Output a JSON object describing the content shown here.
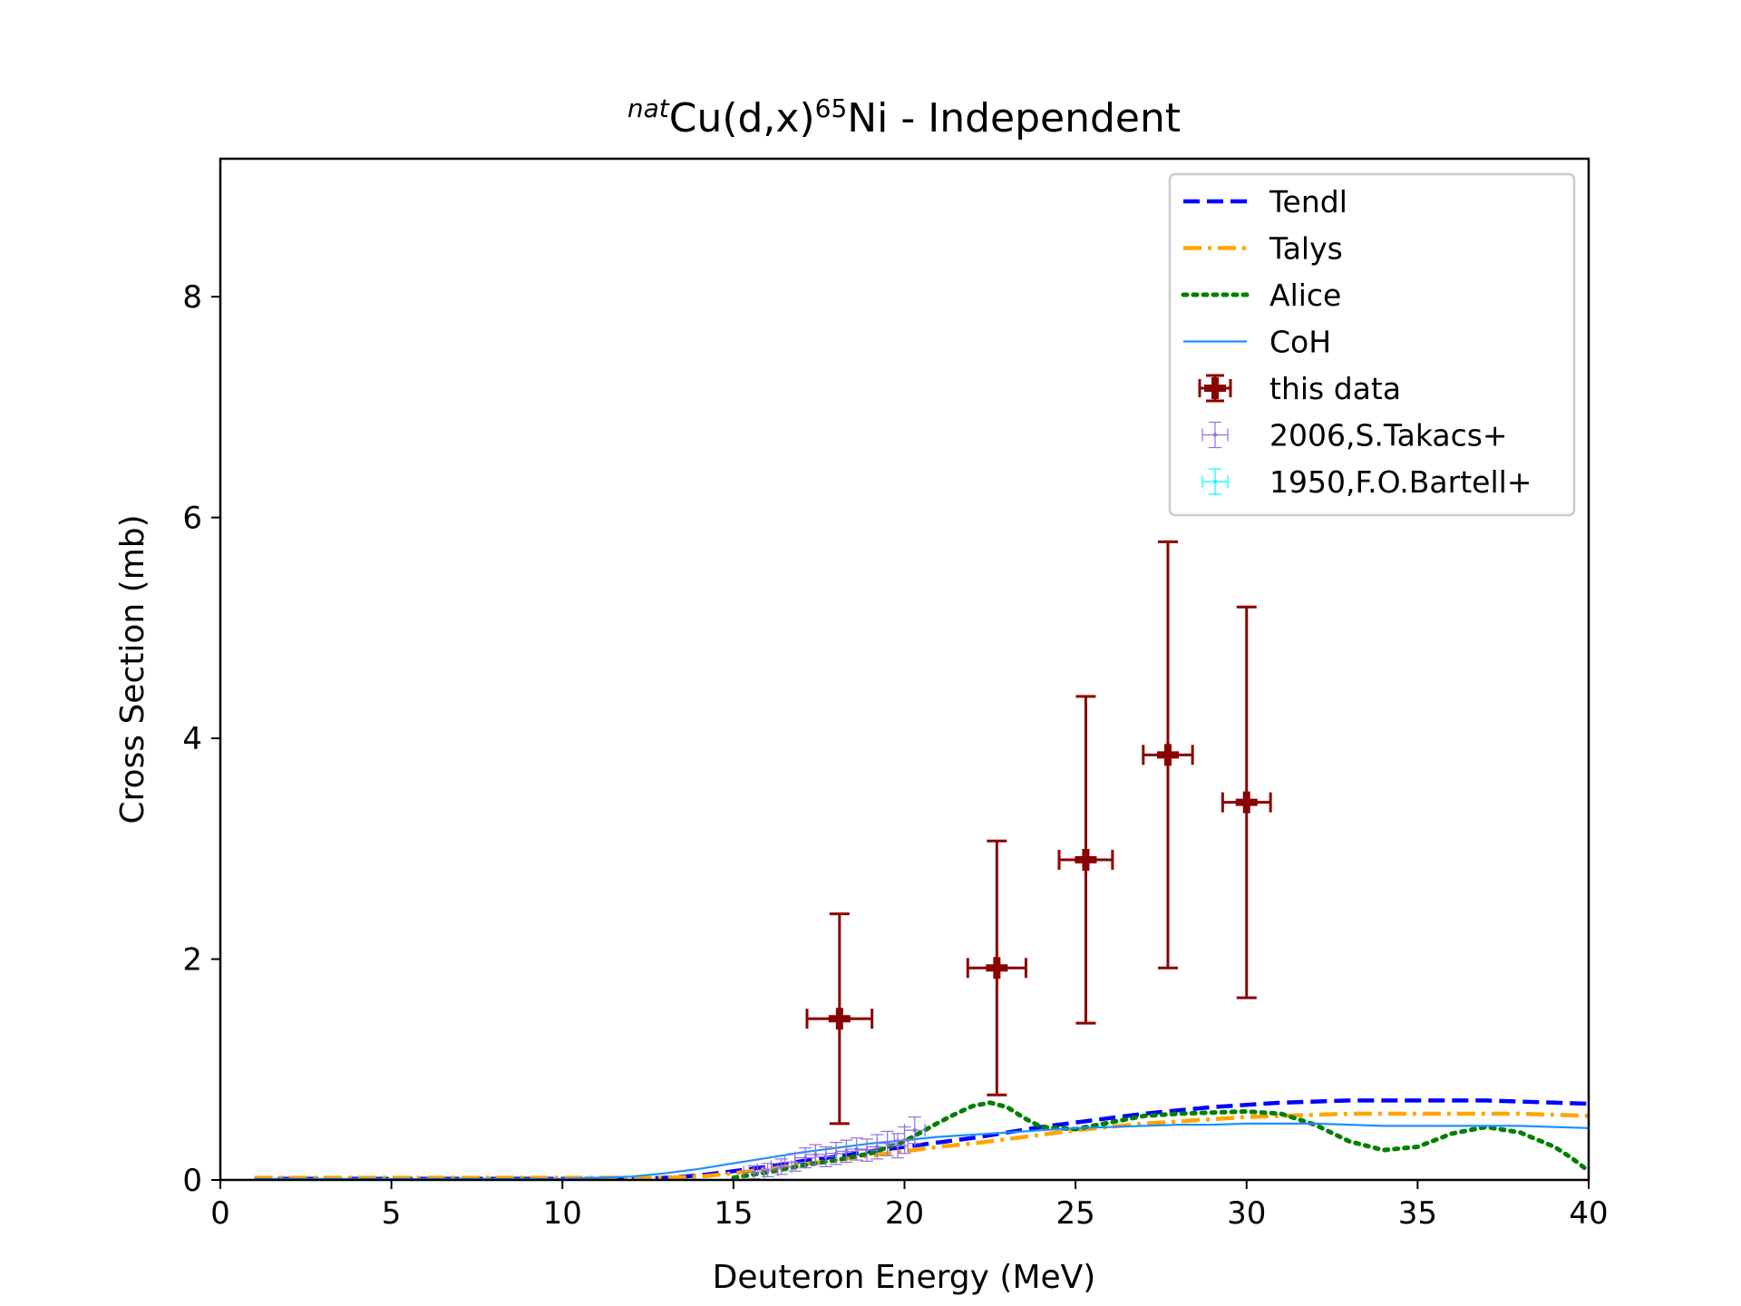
{
  "chart_data": {
    "type": "scatter",
    "title": {
      "prefix_sup": "nat",
      "element": "Cu(d,x)",
      "product_sup": "65",
      "product": "Ni - Independent"
    },
    "xlabel": "Deuteron Energy (MeV)",
    "ylabel": "Cross Section (mb)",
    "xlim": [
      0,
      40
    ],
    "ylim": [
      0,
      9.25
    ],
    "xticks": [
      0,
      5,
      10,
      15,
      20,
      25,
      30,
      35,
      40
    ],
    "xtick_labels": [
      "0",
      "5",
      "10",
      "15",
      "20",
      "25",
      "30",
      "35",
      "40"
    ],
    "yticks": [
      0,
      2,
      4,
      6,
      8
    ],
    "ytick_labels": [
      "0",
      "2",
      "4",
      "6",
      "8"
    ],
    "grid": false,
    "legend_position": "top-right",
    "series": [
      {
        "name": "Tendl",
        "kind": "line",
        "style": "dashed",
        "color": "#0000ff",
        "x": [
          1,
          5,
          10,
          12,
          13,
          14,
          15,
          16,
          17,
          18,
          19,
          20,
          21,
          22,
          23,
          24,
          25,
          26,
          27,
          28,
          29,
          30,
          31,
          32,
          33,
          34,
          35,
          36,
          37,
          38,
          39,
          40
        ],
        "y": [
          0.01,
          0.01,
          0.01,
          0.01,
          0.02,
          0.04,
          0.08,
          0.12,
          0.17,
          0.21,
          0.26,
          0.3,
          0.34,
          0.38,
          0.43,
          0.48,
          0.52,
          0.56,
          0.6,
          0.63,
          0.66,
          0.68,
          0.7,
          0.71,
          0.72,
          0.72,
          0.72,
          0.72,
          0.72,
          0.71,
          0.7,
          0.69
        ]
      },
      {
        "name": "Talys",
        "kind": "line",
        "style": "dashdot",
        "color": "#ffa500",
        "x": [
          1,
          5,
          10,
          12,
          13,
          14,
          15,
          16,
          17,
          18,
          19,
          20,
          21,
          22,
          23,
          24,
          25,
          26,
          27,
          28,
          29,
          30,
          31,
          32,
          33,
          34,
          35,
          36,
          37,
          38,
          39,
          40
        ],
        "y": [
          0.02,
          0.02,
          0.02,
          0.02,
          0.02,
          0.03,
          0.06,
          0.1,
          0.14,
          0.18,
          0.22,
          0.26,
          0.3,
          0.33,
          0.37,
          0.41,
          0.45,
          0.48,
          0.51,
          0.53,
          0.55,
          0.57,
          0.58,
          0.59,
          0.6,
          0.6,
          0.6,
          0.6,
          0.6,
          0.6,
          0.59,
          0.58
        ]
      },
      {
        "name": "Alice",
        "kind": "line",
        "style": "dotted",
        "color": "#008000",
        "x": [
          15,
          16,
          17,
          18,
          19,
          20,
          21,
          21.5,
          22,
          22.5,
          23,
          23.5,
          24,
          25,
          26,
          27,
          28,
          29,
          30,
          31,
          32,
          33,
          34,
          35,
          36,
          37,
          38,
          39,
          39.5,
          40
        ],
        "y": [
          0.02,
          0.07,
          0.13,
          0.18,
          0.24,
          0.35,
          0.52,
          0.6,
          0.67,
          0.7,
          0.66,
          0.56,
          0.48,
          0.46,
          0.52,
          0.58,
          0.6,
          0.61,
          0.62,
          0.6,
          0.5,
          0.35,
          0.27,
          0.3,
          0.42,
          0.48,
          0.43,
          0.3,
          0.2,
          0.08
        ]
      },
      {
        "name": "CoH",
        "kind": "line",
        "style": "solid",
        "color": "#1e90ff",
        "x": [
          1,
          5,
          10,
          11,
          12,
          13,
          14,
          15,
          16,
          17,
          18,
          19,
          20,
          21,
          22,
          23,
          24,
          25,
          26,
          27,
          28,
          29,
          30,
          31,
          32,
          33,
          34,
          35,
          36,
          37,
          38,
          39,
          40
        ],
        "y": [
          0.01,
          0.01,
          0.01,
          0.02,
          0.03,
          0.06,
          0.1,
          0.15,
          0.2,
          0.25,
          0.29,
          0.33,
          0.36,
          0.39,
          0.41,
          0.43,
          0.45,
          0.47,
          0.48,
          0.49,
          0.5,
          0.5,
          0.51,
          0.51,
          0.51,
          0.5,
          0.49,
          0.49,
          0.49,
          0.49,
          0.49,
          0.48,
          0.47
        ]
      },
      {
        "name": "this data",
        "kind": "errorbar",
        "color": "#8b0000",
        "points": [
          {
            "x": 18.1,
            "y": 1.46,
            "xerr": 0.95,
            "yerr": 0.95
          },
          {
            "x": 22.7,
            "y": 1.92,
            "xerr": 0.85,
            "yerr": 1.15
          },
          {
            "x": 25.3,
            "y": 2.9,
            "xerr": 0.78,
            "yerr": 1.48
          },
          {
            "x": 27.7,
            "y": 3.85,
            "xerr": 0.72,
            "yerr": 1.93
          },
          {
            "x": 30.0,
            "y": 3.42,
            "xerr": 0.7,
            "yerr": 1.77
          }
        ]
      },
      {
        "name": "2006,S.Takacs+",
        "kind": "errorbar",
        "color": "#9370db",
        "points": [
          {
            "x": 15.6,
            "y": 0.07,
            "xerr": 0.3,
            "yerr": 0.06
          },
          {
            "x": 16.0,
            "y": 0.09,
            "xerr": 0.3,
            "yerr": 0.06
          },
          {
            "x": 16.4,
            "y": 0.12,
            "xerr": 0.3,
            "yerr": 0.07
          },
          {
            "x": 16.8,
            "y": 0.16,
            "xerr": 0.3,
            "yerr": 0.08
          },
          {
            "x": 17.1,
            "y": 0.2,
            "xerr": 0.3,
            "yerr": 0.09
          },
          {
            "x": 17.4,
            "y": 0.23,
            "xerr": 0.3,
            "yerr": 0.09
          },
          {
            "x": 17.7,
            "y": 0.21,
            "xerr": 0.3,
            "yerr": 0.09
          },
          {
            "x": 18.0,
            "y": 0.24,
            "xerr": 0.3,
            "yerr": 0.1
          },
          {
            "x": 18.3,
            "y": 0.26,
            "xerr": 0.3,
            "yerr": 0.1
          },
          {
            "x": 18.6,
            "y": 0.28,
            "xerr": 0.3,
            "yerr": 0.1
          },
          {
            "x": 18.9,
            "y": 0.27,
            "xerr": 0.3,
            "yerr": 0.1
          },
          {
            "x": 19.2,
            "y": 0.3,
            "xerr": 0.3,
            "yerr": 0.11
          },
          {
            "x": 19.5,
            "y": 0.33,
            "xerr": 0.3,
            "yerr": 0.11
          },
          {
            "x": 19.8,
            "y": 0.31,
            "xerr": 0.3,
            "yerr": 0.11
          },
          {
            "x": 20.0,
            "y": 0.36,
            "xerr": 0.3,
            "yerr": 0.12
          },
          {
            "x": 20.3,
            "y": 0.45,
            "xerr": 0.3,
            "yerr": 0.12
          }
        ]
      },
      {
        "name": "1950,F.O.Bartell+",
        "kind": "errorbar",
        "color": "#00ffff",
        "points": []
      }
    ]
  }
}
